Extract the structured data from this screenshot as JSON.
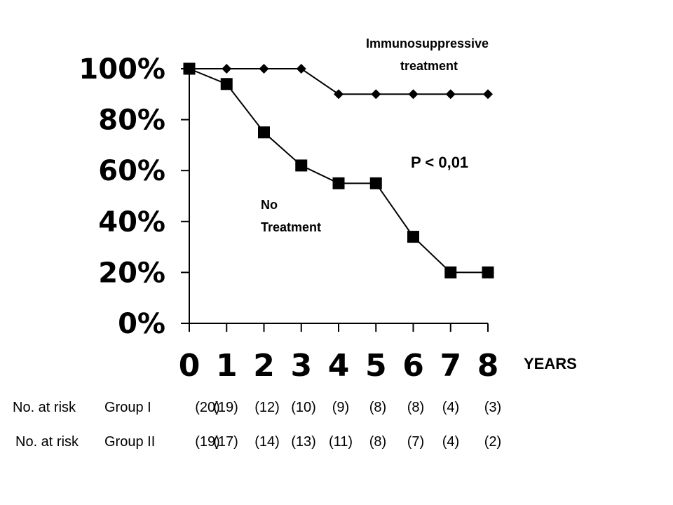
{
  "chart_data": {
    "type": "line",
    "x": [
      0,
      1,
      2,
      3,
      4,
      5,
      6,
      7,
      8
    ],
    "x_tick_labels": [
      "0",
      "1",
      "2",
      "3",
      "4",
      "5",
      "6",
      "7",
      "8"
    ],
    "x_unit_label": "YEARS",
    "ylim": [
      0,
      100
    ],
    "y_tick_labels": [
      "100%",
      "80%",
      "60%",
      "40%",
      "20%",
      "0%"
    ],
    "y_tick_values": [
      100,
      80,
      60,
      40,
      20,
      0
    ],
    "grid": false,
    "series": [
      {
        "marker": "diamond",
        "label_lines": [
          "Immunosuppressive",
          "treatment"
        ],
        "values": [
          100,
          100,
          100,
          100,
          90,
          90,
          90,
          90,
          90
        ]
      },
      {
        "marker": "square",
        "label_lines": [
          "No",
          "Treatment"
        ],
        "values": [
          100,
          94,
          75,
          62,
          55,
          55,
          34,
          20,
          20
        ]
      }
    ],
    "annotations": {
      "p_value": "P < 0,01"
    },
    "risk_table": [
      {
        "label": "No. at risk",
        "group": "Group I",
        "counts": [
          "(20)",
          "(19)",
          "(12)",
          "(10)",
          "(9)",
          "(8)",
          "(8)",
          "(4)",
          "(3)"
        ]
      },
      {
        "label": "No. at risk",
        "group": "Group II",
        "counts": [
          "(19)",
          "(17)",
          "(14)",
          "(13)",
          "(11)",
          "(8)",
          "(7)",
          "(4)",
          "(2)"
        ]
      }
    ]
  }
}
